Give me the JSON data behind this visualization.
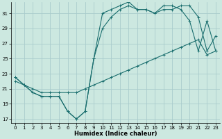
{
  "xlabel": "Humidex (Indice chaleur)",
  "bg_color": "#cce8e0",
  "grid_color": "#aacccc",
  "line_color": "#1a6e6e",
  "xlim": [
    -0.5,
    23.5
  ],
  "ylim": [
    16.5,
    32.5
  ],
  "xticks": [
    0,
    1,
    2,
    3,
    4,
    5,
    6,
    7,
    8,
    9,
    10,
    11,
    12,
    13,
    14,
    15,
    16,
    17,
    18,
    19,
    20,
    21,
    22,
    23
  ],
  "yticks": [
    17,
    19,
    21,
    23,
    25,
    27,
    29,
    31
  ],
  "curve1_x": [
    0,
    1,
    2,
    3,
    4,
    5,
    6,
    7,
    8,
    9,
    10,
    11,
    12,
    13,
    14,
    15,
    16,
    17,
    18,
    19,
    20,
    21,
    22,
    23
  ],
  "curve1_y": [
    22.5,
    21.5,
    20.5,
    20.0,
    20.0,
    20.0,
    18.0,
    17.0,
    18.0,
    25.0,
    31.0,
    31.5,
    32.0,
    32.5,
    31.5,
    31.5,
    31.0,
    32.0,
    32.0,
    31.5,
    30.0,
    26.0,
    30.0,
    26.0
  ],
  "curve2_x": [
    0,
    1,
    2,
    3,
    4,
    5,
    6,
    7,
    8,
    9,
    10,
    11,
    12,
    13,
    14,
    15,
    16,
    17,
    18,
    19,
    20,
    21,
    22,
    23
  ],
  "curve2_y": [
    22.5,
    21.5,
    20.5,
    20.0,
    20.0,
    20.0,
    18.0,
    17.0,
    18.0,
    25.0,
    29.0,
    30.5,
    31.5,
    32.0,
    31.5,
    31.5,
    31.0,
    31.5,
    31.5,
    32.0,
    32.0,
    30.5,
    26.0,
    28.0
  ],
  "diag_x": [
    0,
    1,
    2,
    3,
    4,
    5,
    6,
    7,
    8,
    9,
    10,
    11,
    12,
    13,
    14,
    15,
    16,
    17,
    18,
    19,
    20,
    21,
    22,
    23
  ],
  "diag_y": [
    22.0,
    21.5,
    21.0,
    20.5,
    20.5,
    20.5,
    20.5,
    20.5,
    21.0,
    21.5,
    22.0,
    22.5,
    23.0,
    23.5,
    24.0,
    24.5,
    25.0,
    25.5,
    26.0,
    26.5,
    27.0,
    27.5,
    25.5,
    26.0
  ]
}
